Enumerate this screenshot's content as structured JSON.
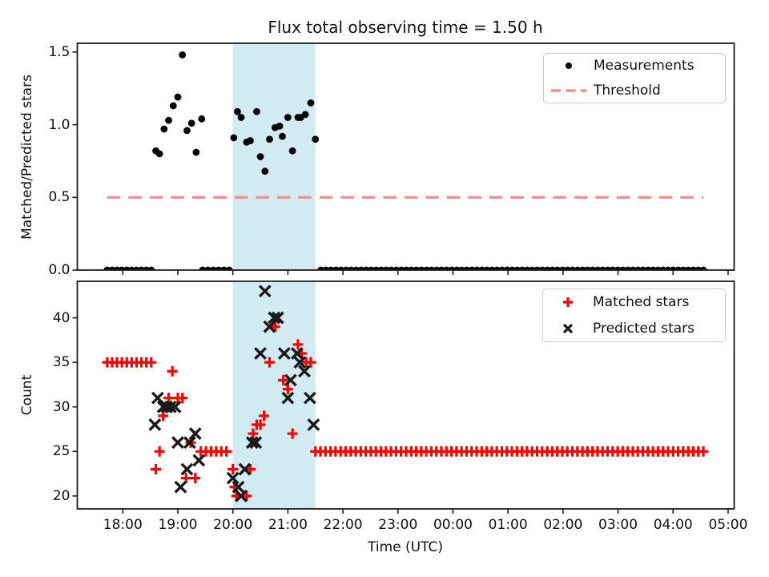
{
  "figure_title": "Flux total observing time = 1.50 h",
  "x_axis": {
    "label": "Time (UTC)",
    "tick_labels": [
      "18:00",
      "19:00",
      "20:00",
      "21:00",
      "22:00",
      "23:00",
      "00:00",
      "01:00",
      "02:00",
      "03:00",
      "04:00",
      "05:00"
    ]
  },
  "colors": {
    "measurement": "#000000",
    "threshold": "#ff8b8b",
    "matched": "#ff0000",
    "predicted": "#1a1a1a",
    "shade": "rgba(173,216,230,0.55)",
    "spine": "#1c1c1c",
    "legend_border": "#cbcbcb"
  },
  "shaded_region": {
    "from": "20:00",
    "to": "21:30"
  },
  "chart_data": [
    {
      "type": "scatter",
      "title": "Flux total observing time = 1.50 h",
      "ylabel": "Matched/Predicted stars",
      "ylim": [
        0,
        1.56
      ],
      "yticks": [
        {
          "label": "0.0",
          "v": 0.0
        },
        {
          "label": "0.5",
          "v": 0.5
        },
        {
          "label": "1.0",
          "v": 1.0
        },
        {
          "label": "1.5",
          "v": 1.5
        }
      ],
      "legend": [
        {
          "label": "Measurements",
          "marker": "dot"
        },
        {
          "label": "Threshold",
          "marker": "dashed-line"
        }
      ],
      "series": [
        {
          "name": "Measurements",
          "marker": "dot",
          "color_key": "measurement",
          "points": [
            [
              "18:36",
              0.82
            ],
            [
              "18:40",
              0.8
            ],
            [
              "18:45",
              0.97
            ],
            [
              "18:50",
              1.03
            ],
            [
              "18:55",
              1.13
            ],
            [
              "19:00",
              1.19
            ],
            [
              "19:05",
              1.48
            ],
            [
              "19:10",
              0.96
            ],
            [
              "19:15",
              1.01
            ],
            [
              "19:20",
              0.81
            ],
            [
              "19:26",
              1.04
            ],
            [
              "20:01",
              0.91
            ],
            [
              "20:05",
              1.09
            ],
            [
              "20:09",
              1.05
            ],
            [
              "20:15",
              0.88
            ],
            [
              "20:19",
              0.89
            ],
            [
              "20:26",
              1.09
            ],
            [
              "20:30",
              0.78
            ],
            [
              "20:35",
              0.68
            ],
            [
              "20:40",
              0.9
            ],
            [
              "20:46",
              0.98
            ],
            [
              "20:51",
              0.99
            ],
            [
              "20:54",
              0.92
            ],
            [
              "21:00",
              1.05
            ],
            [
              "21:05",
              0.82
            ],
            [
              "21:11",
              1.05
            ],
            [
              "21:14",
              1.05
            ],
            [
              "21:19",
              1.07
            ],
            [
              "21:25",
              1.15
            ],
            [
              "21:30",
              0.9
            ]
          ],
          "runs": [
            {
              "from": "17:43",
              "to": "18:31",
              "count": 10,
              "value": 0
            },
            {
              "from": "19:27",
              "to": "19:56",
              "count": 6,
              "value": 0
            },
            {
              "from": "21:36",
              "to": "04:33",
              "count": 77,
              "value": 0
            }
          ]
        },
        {
          "name": "Threshold",
          "marker": "dashed-hline",
          "color_key": "threshold",
          "value": 0.5,
          "from": "17:43",
          "to": "04:33"
        }
      ]
    },
    {
      "type": "scatter",
      "ylabel": "Count",
      "ylim": [
        18.55,
        44.1
      ],
      "yticks": [
        {
          "label": "20",
          "v": 20
        },
        {
          "label": "25",
          "v": 25
        },
        {
          "label": "30",
          "v": 30
        },
        {
          "label": "35",
          "v": 35
        },
        {
          "label": "40",
          "v": 40
        }
      ],
      "legend": [
        {
          "label": "Matched stars",
          "marker": "plus"
        },
        {
          "label": "Predicted stars",
          "marker": "x"
        }
      ],
      "series": [
        {
          "name": "Matched stars",
          "marker": "plus",
          "color_key": "matched",
          "points": [
            [
              "18:36",
              23
            ],
            [
              "18:40",
              25
            ],
            [
              "18:44",
              29
            ],
            [
              "18:50",
              31
            ],
            [
              "18:54",
              34
            ],
            [
              "19:00",
              31
            ],
            [
              "19:05",
              31
            ],
            [
              "19:09",
              22
            ],
            [
              "19:14",
              26
            ],
            [
              "19:19",
              22
            ],
            [
              "20:00",
              23
            ],
            [
              "20:02",
              21
            ],
            [
              "20:04",
              20
            ],
            [
              "20:15",
              20
            ],
            [
              "20:19",
              23
            ],
            [
              "20:22",
              27
            ],
            [
              "20:26",
              28
            ],
            [
              "20:30",
              28
            ],
            [
              "20:34",
              29
            ],
            [
              "20:40",
              35
            ],
            [
              "20:46",
              39
            ],
            [
              "20:55",
              33
            ],
            [
              "21:00",
              32
            ],
            [
              "21:05",
              27
            ],
            [
              "21:11",
              37
            ],
            [
              "21:15",
              36
            ],
            [
              "21:20",
              35
            ],
            [
              "21:25",
              35
            ]
          ],
          "runs": [
            {
              "from": "17:43",
              "to": "18:31",
              "count": 10,
              "value": 35
            },
            {
              "from": "19:25",
              "to": "19:53",
              "count": 6,
              "value": 25
            },
            {
              "from": "21:30",
              "to": "04:33",
              "count": 78,
              "value": 25
            }
          ]
        },
        {
          "name": "Predicted stars",
          "marker": "x",
          "color_key": "predicted",
          "points": [
            [
              "18:35",
              28
            ],
            [
              "18:38",
              31
            ],
            [
              "18:44",
              30
            ],
            [
              "18:48",
              30
            ],
            [
              "18:52",
              30
            ],
            [
              "18:57",
              30
            ],
            [
              "19:00",
              26
            ],
            [
              "19:03",
              21
            ],
            [
              "19:10",
              23
            ],
            [
              "19:13",
              26
            ],
            [
              "19:19",
              27
            ],
            [
              "19:23",
              24
            ],
            [
              "20:00",
              22
            ],
            [
              "20:06",
              21
            ],
            [
              "20:09",
              20
            ],
            [
              "20:13",
              23
            ],
            [
              "20:21",
              26
            ],
            [
              "20:25",
              26
            ],
            [
              "20:30",
              36
            ],
            [
              "20:35",
              43
            ],
            [
              "20:40",
              39
            ],
            [
              "20:45",
              40
            ],
            [
              "20:49",
              40
            ],
            [
              "20:56",
              36
            ],
            [
              "21:00",
              31
            ],
            [
              "21:03",
              33
            ],
            [
              "21:10",
              36
            ],
            [
              "21:13",
              35
            ],
            [
              "21:18",
              34
            ],
            [
              "21:24",
              31
            ],
            [
              "21:28",
              28
            ]
          ],
          "runs": []
        }
      ]
    }
  ]
}
